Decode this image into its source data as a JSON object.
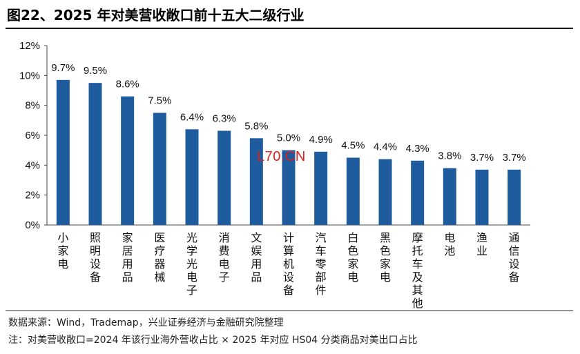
{
  "title": "图22、2025 年对美营收敞口前十五大二级行业",
  "source": "数据来源：Wind，Trademap，兴业证券经济与金融研究院整理",
  "note": "注：对美营收敞口=2024 年该行业海外营收占比 × 2025 年对应 HS04 分类商品对美出口占比",
  "watermark": "L70.CN",
  "colors": {
    "bar": "#1f5c9e"
  },
  "chart_data": {
    "type": "bar",
    "categories": [
      "小家电",
      "照明设备",
      "家居用品",
      "医疗器械",
      "光学光电子",
      "消费电子",
      "文娱用品",
      "计算机设备",
      "汽车零部件",
      "白色家电",
      "黑色家电",
      "摩托车及其他",
      "电池",
      "渔业",
      "通信设备"
    ],
    "values": [
      9.7,
      9.5,
      8.6,
      7.5,
      6.4,
      6.3,
      5.8,
      5.0,
      4.9,
      4.5,
      4.4,
      4.3,
      3.8,
      3.7,
      3.7
    ],
    "value_labels": [
      "9.7%",
      "9.5%",
      "8.6%",
      "7.5%",
      "6.4%",
      "6.3%",
      "5.8%",
      "5.0%",
      "4.9%",
      "4.5%",
      "4.4%",
      "4.3%",
      "3.8%",
      "3.7%",
      "3.7%"
    ],
    "yticks": [
      0,
      2,
      4,
      6,
      8,
      10,
      12
    ],
    "ytick_labels": [
      "0%",
      "2%",
      "4%",
      "6%",
      "8%",
      "10%",
      "12%"
    ],
    "ylim": [
      0,
      12
    ],
    "grid": false,
    "legend": "none"
  }
}
